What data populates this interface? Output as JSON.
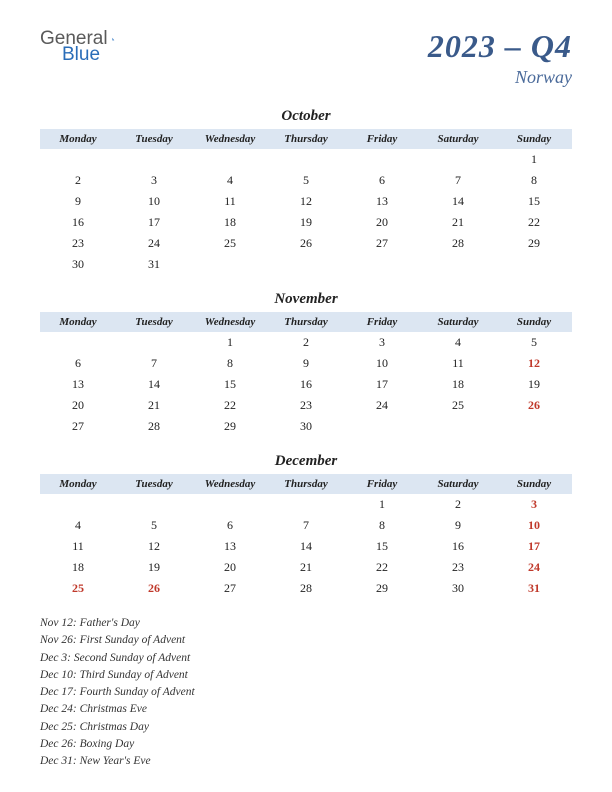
{
  "logo": {
    "general": "General",
    "blue": "Blue"
  },
  "title": {
    "main": "2023 – Q4",
    "sub": "Norway"
  },
  "weekdays": [
    "Monday",
    "Tuesday",
    "Wednesday",
    "Thursday",
    "Friday",
    "Saturday",
    "Sunday"
  ],
  "header_bg": "#dce6f2",
  "title_color": "#3a5a8a",
  "subtitle_color": "#4a6a9a",
  "holiday_color": "#c0392b",
  "months": [
    {
      "name": "October",
      "weeks": [
        [
          {
            "d": ""
          },
          {
            "d": ""
          },
          {
            "d": ""
          },
          {
            "d": ""
          },
          {
            "d": ""
          },
          {
            "d": ""
          },
          {
            "d": "1"
          }
        ],
        [
          {
            "d": "2"
          },
          {
            "d": "3"
          },
          {
            "d": "4"
          },
          {
            "d": "5"
          },
          {
            "d": "6"
          },
          {
            "d": "7"
          },
          {
            "d": "8"
          }
        ],
        [
          {
            "d": "9"
          },
          {
            "d": "10"
          },
          {
            "d": "11"
          },
          {
            "d": "12"
          },
          {
            "d": "13"
          },
          {
            "d": "14"
          },
          {
            "d": "15"
          }
        ],
        [
          {
            "d": "16"
          },
          {
            "d": "17"
          },
          {
            "d": "18"
          },
          {
            "d": "19"
          },
          {
            "d": "20"
          },
          {
            "d": "21"
          },
          {
            "d": "22"
          }
        ],
        [
          {
            "d": "23"
          },
          {
            "d": "24"
          },
          {
            "d": "25"
          },
          {
            "d": "26"
          },
          {
            "d": "27"
          },
          {
            "d": "28"
          },
          {
            "d": "29"
          }
        ],
        [
          {
            "d": "30"
          },
          {
            "d": "31"
          },
          {
            "d": ""
          },
          {
            "d": ""
          },
          {
            "d": ""
          },
          {
            "d": ""
          },
          {
            "d": ""
          }
        ]
      ]
    },
    {
      "name": "November",
      "weeks": [
        [
          {
            "d": ""
          },
          {
            "d": ""
          },
          {
            "d": "1"
          },
          {
            "d": "2"
          },
          {
            "d": "3"
          },
          {
            "d": "4"
          },
          {
            "d": "5"
          }
        ],
        [
          {
            "d": "6"
          },
          {
            "d": "7"
          },
          {
            "d": "8"
          },
          {
            "d": "9"
          },
          {
            "d": "10"
          },
          {
            "d": "11"
          },
          {
            "d": "12",
            "h": true
          }
        ],
        [
          {
            "d": "13"
          },
          {
            "d": "14"
          },
          {
            "d": "15"
          },
          {
            "d": "16"
          },
          {
            "d": "17"
          },
          {
            "d": "18"
          },
          {
            "d": "19"
          }
        ],
        [
          {
            "d": "20"
          },
          {
            "d": "21"
          },
          {
            "d": "22"
          },
          {
            "d": "23"
          },
          {
            "d": "24"
          },
          {
            "d": "25"
          },
          {
            "d": "26",
            "h": true
          }
        ],
        [
          {
            "d": "27"
          },
          {
            "d": "28"
          },
          {
            "d": "29"
          },
          {
            "d": "30"
          },
          {
            "d": ""
          },
          {
            "d": ""
          },
          {
            "d": ""
          }
        ]
      ]
    },
    {
      "name": "December",
      "weeks": [
        [
          {
            "d": ""
          },
          {
            "d": ""
          },
          {
            "d": ""
          },
          {
            "d": ""
          },
          {
            "d": "1"
          },
          {
            "d": "2"
          },
          {
            "d": "3",
            "h": true
          }
        ],
        [
          {
            "d": "4"
          },
          {
            "d": "5"
          },
          {
            "d": "6"
          },
          {
            "d": "7"
          },
          {
            "d": "8"
          },
          {
            "d": "9"
          },
          {
            "d": "10",
            "h": true
          }
        ],
        [
          {
            "d": "11"
          },
          {
            "d": "12"
          },
          {
            "d": "13"
          },
          {
            "d": "14"
          },
          {
            "d": "15"
          },
          {
            "d": "16"
          },
          {
            "d": "17",
            "h": true
          }
        ],
        [
          {
            "d": "18"
          },
          {
            "d": "19"
          },
          {
            "d": "20"
          },
          {
            "d": "21"
          },
          {
            "d": "22"
          },
          {
            "d": "23"
          },
          {
            "d": "24",
            "h": true
          }
        ],
        [
          {
            "d": "25",
            "h": true
          },
          {
            "d": "26",
            "h": true
          },
          {
            "d": "27"
          },
          {
            "d": "28"
          },
          {
            "d": "29"
          },
          {
            "d": "30"
          },
          {
            "d": "31",
            "h": true
          }
        ]
      ]
    }
  ],
  "holiday_list": [
    "Nov 12: Father's Day",
    "Nov 26: First Sunday of Advent",
    "Dec 3: Second Sunday of Advent",
    "Dec 10: Third Sunday of Advent",
    "Dec 17: Fourth Sunday of Advent",
    "Dec 24: Christmas Eve",
    "Dec 25: Christmas Day",
    "Dec 26: Boxing Day",
    "Dec 31: New Year's Eve"
  ]
}
